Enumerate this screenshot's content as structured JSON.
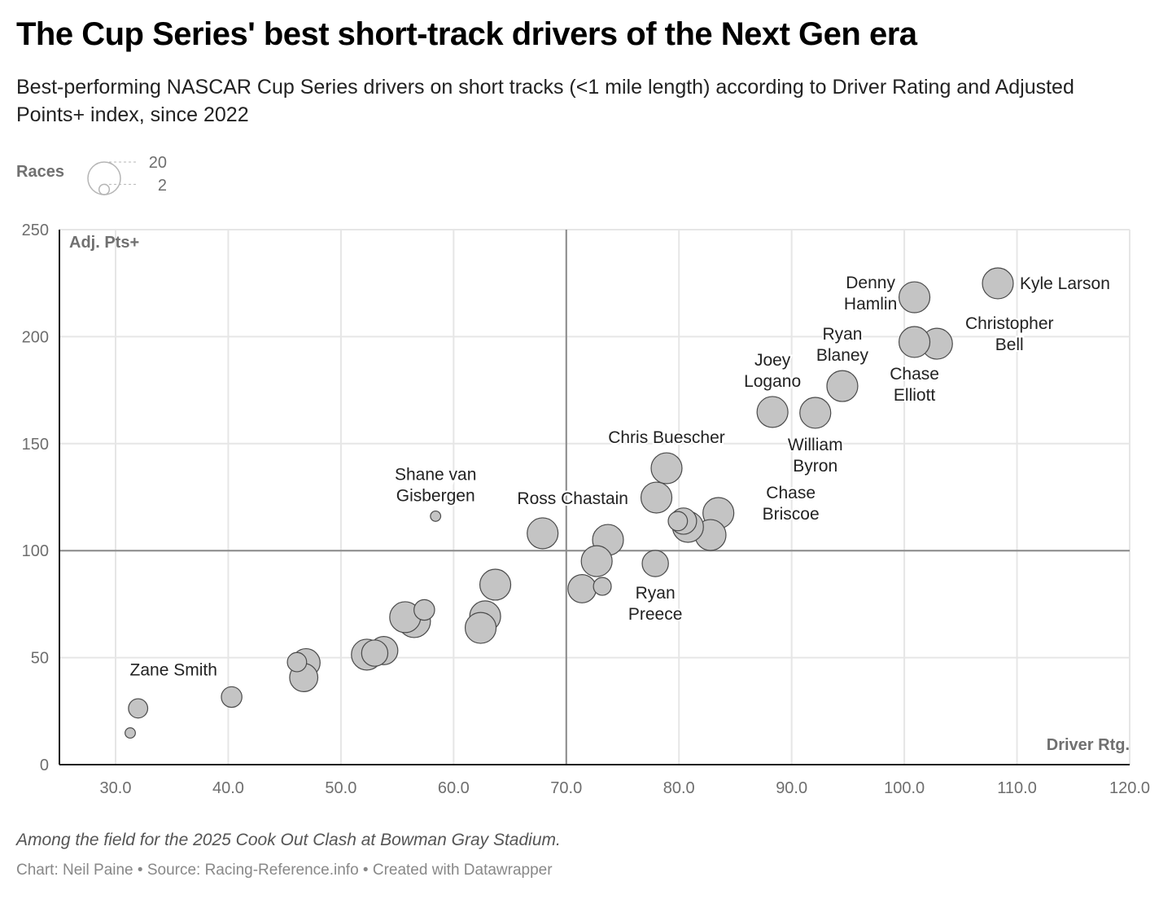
{
  "header": {
    "title": "The Cup Series' best short-track drivers of the Next Gen era",
    "subtitle": "Best-performing NASCAR Cup Series drivers on short tracks (<1 mile length) according to Driver Rating and Adjusted Points+ index, since 2022"
  },
  "legend": {
    "title": "Races",
    "max_label": "20",
    "min_label": "2",
    "max_value": 20,
    "min_value": 2
  },
  "footer": {
    "notes": "Among the field for the 2025 Cook Out Clash at Bowman Gray Stadium.",
    "byline": "Chart: Neil Paine • Source: Racing-Reference.info • Created with Datawrapper"
  },
  "colors": {
    "bubble_fill": "#c4c4c4",
    "bubble_stroke": "#4a4a4a",
    "grid": "#e6e6e6",
    "reference_line": "#8a8a8a",
    "axis": "#1a1a1a"
  },
  "chart_data": {
    "type": "scatter",
    "title": "The Cup Series' best short-track drivers of the Next Gen era",
    "xlabel": "Driver Rtg.",
    "ylabel": "Adj. Pts+",
    "size_label": "Races",
    "xlim": [
      25,
      120
    ],
    "ylim": [
      0,
      250
    ],
    "x_ticks": [
      30,
      40,
      50,
      60,
      70,
      80,
      90,
      100,
      110,
      120
    ],
    "x_tick_labels": [
      "30.0",
      "40.0",
      "50.0",
      "60.0",
      "70.0",
      "80.0",
      "90.0",
      "100.0",
      "110.0",
      "120.0"
    ],
    "y_ticks": [
      0,
      50,
      100,
      150,
      200,
      250
    ],
    "y_tick_labels": [
      "0",
      "50",
      "100",
      "150",
      "200",
      "250"
    ],
    "reference_lines": {
      "x": 70,
      "y": 100
    },
    "grid": true,
    "legend_position": "top-left",
    "points": [
      {
        "name": "Kyle Larson",
        "label": [
          "Kyle Larson"
        ],
        "label_pos": "right",
        "x": 108.3,
        "y": 224.9,
        "races": 18
      },
      {
        "name": "Denny Hamlin",
        "label": [
          "Denny",
          "Hamlin"
        ],
        "label_pos": "left",
        "x": 100.9,
        "y": 218.4,
        "races": 18
      },
      {
        "name": "Christopher Bell",
        "label": [
          "Christopher",
          "Bell"
        ],
        "label_pos": "right",
        "x": 102.9,
        "y": 196.7,
        "races": 18
      },
      {
        "name": "Chase Elliott",
        "label": [
          "Chase",
          "Elliott"
        ],
        "label_pos": "below",
        "x": 100.9,
        "y": 197.5,
        "races": 18
      },
      {
        "name": "Ryan Blaney",
        "label": [
          "Ryan",
          "Blaney"
        ],
        "label_pos": "above",
        "x": 94.5,
        "y": 176.9,
        "races": 18
      },
      {
        "name": "Joey Logano",
        "label": [
          "Joey",
          "Logano"
        ],
        "label_pos": "above",
        "x": 88.3,
        "y": 164.8,
        "races": 18
      },
      {
        "name": "William Byron",
        "label": [
          "William",
          "Byron"
        ],
        "label_pos": "below",
        "x": 92.1,
        "y": 164.4,
        "races": 18
      },
      {
        "name": "Chris Buescher",
        "label": [
          "Chris Buescher"
        ],
        "label_pos": "above",
        "x": 78.9,
        "y": 138.5,
        "races": 18
      },
      {
        "name": "",
        "label": [],
        "x": 78.0,
        "y": 124.8,
        "races": 18
      },
      {
        "name": "Chase Briscoe",
        "label": [
          "Chase",
          "Briscoe"
        ],
        "label_pos": "right",
        "x": 83.5,
        "y": 117.6,
        "races": 18
      },
      {
        "name": "",
        "label": [],
        "x": 82.8,
        "y": 107.3,
        "races": 18
      },
      {
        "name": "",
        "label": [],
        "x": 80.8,
        "y": 111.1,
        "races": 18
      },
      {
        "name": "",
        "label": [],
        "x": 80.4,
        "y": 113.8,
        "races": 13
      },
      {
        "name": "",
        "label": [],
        "x": 79.9,
        "y": 113.8,
        "races": 7
      },
      {
        "name": "Ross Chastain",
        "label": [
          "Ross Chastain"
        ],
        "label_pos": "above-right",
        "x": 67.9,
        "y": 108.1,
        "races": 18
      },
      {
        "name": "",
        "label": [],
        "x": 73.7,
        "y": 105.0,
        "races": 18
      },
      {
        "name": "",
        "label": [],
        "x": 72.7,
        "y": 95.1,
        "races": 18
      },
      {
        "name": "Ryan Preece",
        "label": [
          "Ryan",
          "Preece"
        ],
        "label_pos": "below",
        "x": 77.9,
        "y": 94.0,
        "races": 13
      },
      {
        "name": "",
        "label": [],
        "x": 71.4,
        "y": 82.2,
        "races": 15
      },
      {
        "name": "",
        "label": [],
        "x": 73.2,
        "y": 83.3,
        "races": 6
      },
      {
        "name": "Shane van Gisbergen",
        "label": [
          "Shane van",
          "Gisbergen"
        ],
        "label_pos": "above",
        "x": 58.4,
        "y": 116.1,
        "races": 2
      },
      {
        "name": "",
        "label": [],
        "x": 63.7,
        "y": 84.1,
        "races": 18
      },
      {
        "name": "",
        "label": [],
        "x": 62.8,
        "y": 69.3,
        "races": 18
      },
      {
        "name": "",
        "label": [],
        "x": 62.4,
        "y": 63.9,
        "races": 18
      },
      {
        "name": "",
        "label": [],
        "x": 55.7,
        "y": 68.9,
        "races": 18
      },
      {
        "name": "",
        "label": [],
        "x": 56.5,
        "y": 67.0,
        "races": 20
      },
      {
        "name": "",
        "label": [],
        "x": 57.4,
        "y": 72.3,
        "races": 8
      },
      {
        "name": "",
        "label": [],
        "x": 53.8,
        "y": 53.3,
        "races": 15
      },
      {
        "name": "",
        "label": [],
        "x": 53.0,
        "y": 52.1,
        "races": 13
      },
      {
        "name": "",
        "label": [],
        "x": 52.3,
        "y": 51.4,
        "races": 18
      },
      {
        "name": "",
        "label": [],
        "x": 46.9,
        "y": 47.6,
        "races": 15
      },
      {
        "name": "",
        "label": [],
        "x": 46.1,
        "y": 47.9,
        "races": 7
      },
      {
        "name": "",
        "label": [],
        "x": 46.7,
        "y": 40.7,
        "races": 15
      },
      {
        "name": "Zane Smith",
        "label": [
          "Zane Smith"
        ],
        "label_pos": "above-left",
        "x": 40.3,
        "y": 31.6,
        "races": 8
      },
      {
        "name": "",
        "label": [],
        "x": 32.0,
        "y": 26.3,
        "races": 7
      },
      {
        "name": "",
        "label": [],
        "x": 31.3,
        "y": 14.8,
        "races": 2
      }
    ]
  }
}
